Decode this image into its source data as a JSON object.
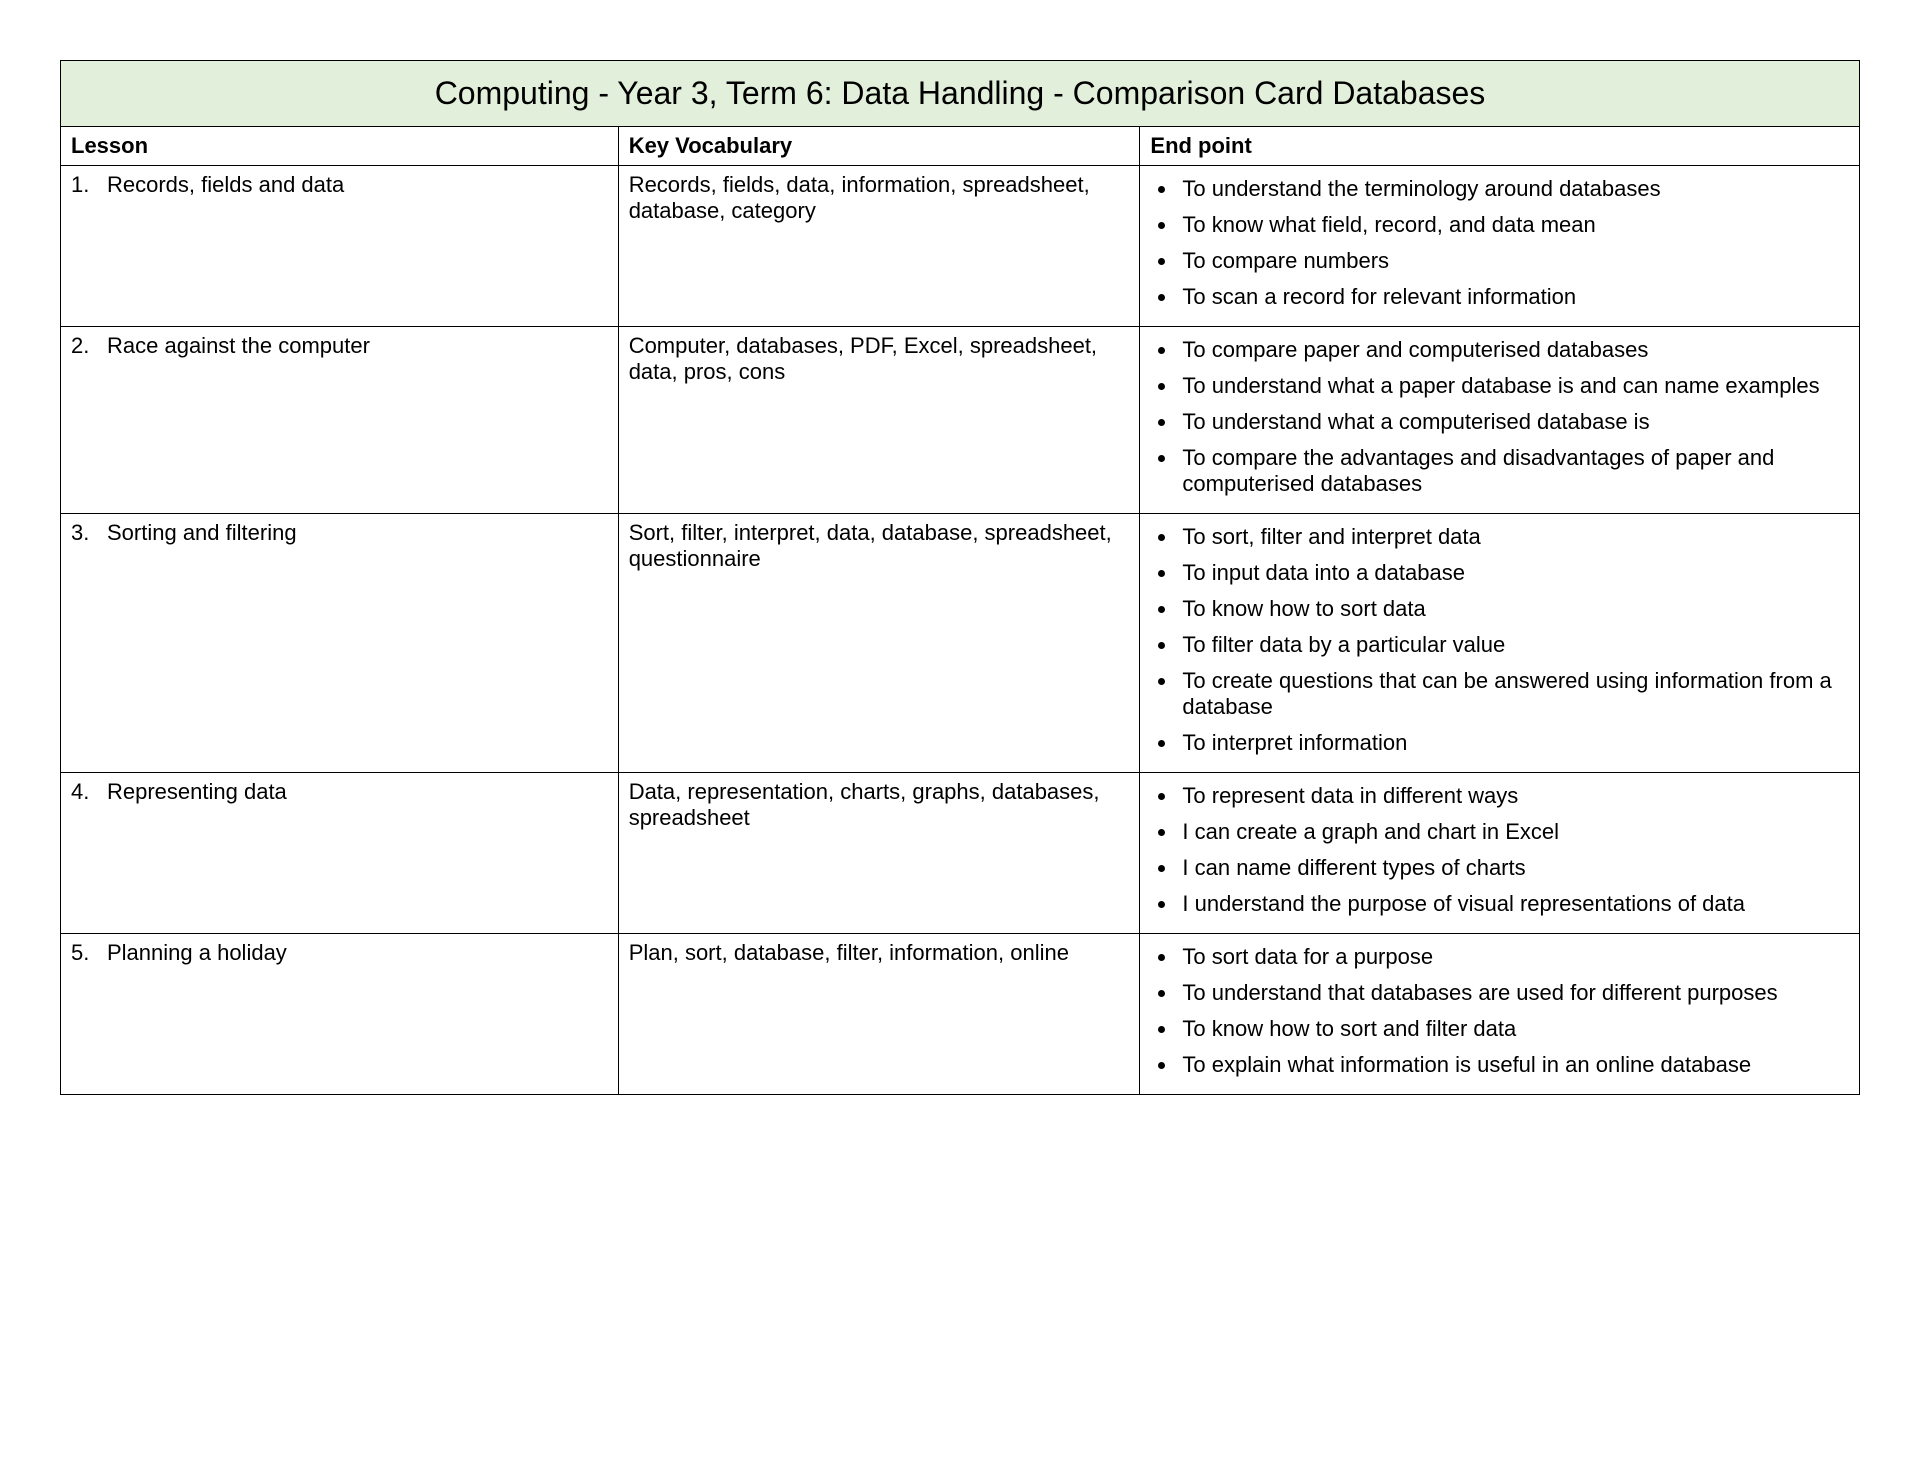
{
  "title": "Computing - Year 3, Term 6: Data Handling - Comparison Card Databases",
  "headers": {
    "lesson": "Lesson",
    "vocab": "Key Vocabulary",
    "endpoint": "End point"
  },
  "rows": [
    {
      "num": "1.",
      "lesson": "Records, fields and data",
      "vocab": "Records, fields, data, information, spreadsheet, database, category",
      "endpoints": [
        "To understand the terminology around databases",
        "To know what field, record, and data mean",
        "To compare numbers",
        "To scan a record for relevant information"
      ]
    },
    {
      "num": "2.",
      "lesson": "Race against the computer",
      "vocab": "Computer, databases, PDF, Excel, spreadsheet, data, pros, cons",
      "endpoints": [
        "To compare paper and computerised databases",
        "To understand what a paper database is and can name examples",
        "To understand what a computerised database is",
        "To compare the advantages and disadvantages of paper and computerised databases"
      ]
    },
    {
      "num": "3.",
      "lesson": "Sorting and filtering",
      "vocab": "Sort, filter, interpret, data, database, spreadsheet, questionnaire",
      "endpoints": [
        "To sort, filter and interpret data",
        "To input data into a database",
        "To know how to sort data",
        "To filter data by a particular value",
        "To create questions that can be answered using information from a database",
        "To interpret information"
      ]
    },
    {
      "num": "4.",
      "lesson": "Representing data",
      "vocab": "Data, representation, charts, graphs, databases, spreadsheet",
      "endpoints": [
        "To represent data in different ways",
        "I can create a graph and chart in Excel",
        "I can name different types of charts",
        "I understand the purpose of visual representations of data"
      ]
    },
    {
      "num": "5.",
      "lesson": "Planning a holiday",
      "vocab": "Plan, sort, database, filter, information, online",
      "endpoints": [
        "To sort data for a purpose",
        "To understand that databases are used for different purposes",
        "To know how to sort and filter data",
        "To explain what information is useful in an online database"
      ]
    }
  ]
}
